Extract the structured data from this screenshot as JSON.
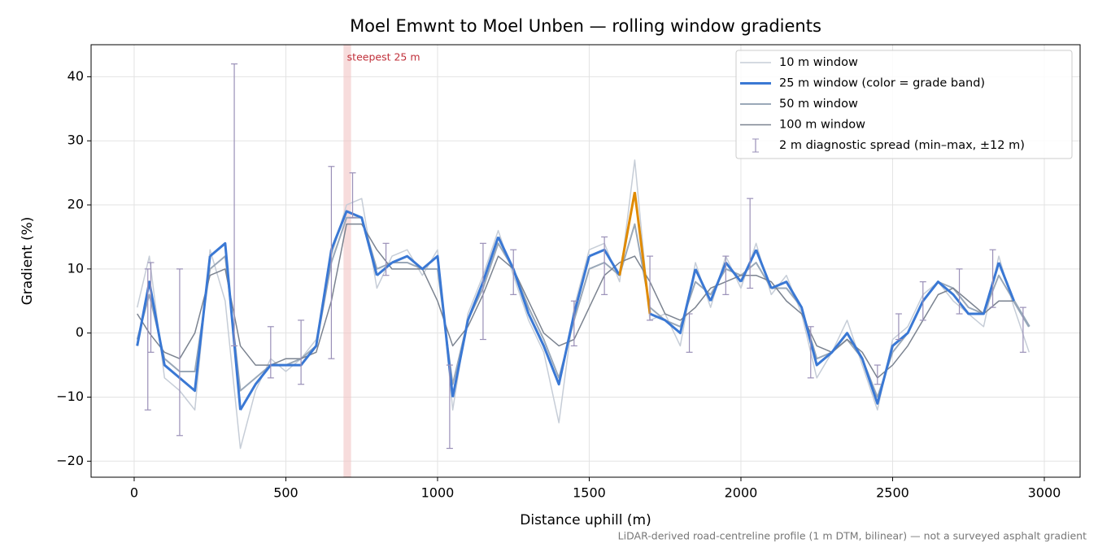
{
  "chart_data": {
    "type": "line",
    "title": "Moel Emwnt to Moel Unben — rolling window gradients",
    "xlabel": "Distance uphill (m)",
    "ylabel": "Gradient (%)",
    "footnote": "LiDAR-derived road-centreline profile (1 m DTM, bilinear) — not a surveyed asphalt gradient",
    "xlim": [
      -142,
      3118
    ],
    "ylim": [
      -22.5,
      45
    ],
    "xticks": [
      0,
      500,
      1000,
      1500,
      2000,
      2500,
      3000
    ],
    "yticks": [
      {
        "value": -20,
        "label": "−20"
      },
      {
        "value": -10,
        "label": "−10"
      },
      0,
      10,
      20,
      30,
      40
    ],
    "grid": true,
    "legend": "upper right",
    "x": [
      10,
      50,
      100,
      150,
      200,
      250,
      300,
      350,
      400,
      450,
      500,
      550,
      600,
      650,
      700,
      750,
      800,
      850,
      900,
      950,
      1000,
      1050,
      1100,
      1150,
      1200,
      1250,
      1300,
      1350,
      1400,
      1450,
      1500,
      1550,
      1600,
      1650,
      1700,
      1750,
      1800,
      1850,
      1900,
      1950,
      2000,
      2050,
      2100,
      2150,
      2200,
      2250,
      2300,
      2350,
      2400,
      2450,
      2500,
      2550,
      2600,
      2650,
      2700,
      2750,
      2800,
      2850,
      2900,
      2950
    ],
    "series": [
      {
        "name": "10 m window",
        "color": "#c6cdd7",
        "width": 1.5,
        "values": [
          4,
          12,
          -7,
          -9,
          -12,
          13,
          5,
          -18,
          -9,
          -4,
          -6,
          -4,
          -1,
          12,
          20,
          21,
          7,
          12,
          13,
          9,
          13,
          -12,
          3,
          9,
          16,
          9,
          2,
          -3,
          -14,
          4,
          13,
          14,
          8,
          27,
          2,
          3,
          -2,
          11,
          4,
          12,
          7,
          14,
          6,
          9,
          3,
          -7,
          -3,
          2,
          -5,
          -12,
          -1,
          1,
          6,
          8,
          5,
          3,
          1,
          12,
          4,
          -3
        ]
      },
      {
        "name": "25 m window (color = grade band)",
        "color": "#3a78d4",
        "width": 3,
        "grade_bands": [
          {
            "max": 10,
            "color": "#96a6b8"
          },
          {
            "max": 20,
            "color": "#3a78d4"
          },
          {
            "max": 45,
            "color": "#e08a00"
          }
        ],
        "values": [
          -2,
          8,
          -5,
          -7,
          -9,
          12,
          14,
          -12,
          -8,
          -5,
          -5,
          -5,
          -2,
          13,
          19,
          18,
          9,
          11,
          12,
          10,
          12,
          -10,
          2,
          8,
          15,
          10,
          3,
          -2,
          -8,
          3,
          12,
          13,
          9,
          22,
          3,
          2,
          0,
          10,
          5,
          11,
          8,
          13,
          7,
          8,
          4,
          -5,
          -3,
          0,
          -4,
          -11,
          -2,
          0,
          5,
          8,
          6,
          3,
          3,
          11,
          5,
          1
        ]
      },
      {
        "name": "50 m window",
        "color": "#9aa8b8",
        "width": 2,
        "values": [
          -1,
          6,
          -4,
          -6,
          -6,
          10,
          12,
          -9,
          -7,
          -5,
          -5,
          -4,
          -2,
          11,
          18,
          18,
          10,
          11,
          11,
          10,
          10,
          -8,
          2,
          7,
          14,
          10,
          4,
          -1,
          -7,
          2,
          10,
          11,
          9,
          17,
          4,
          2,
          1,
          8,
          6,
          10,
          9,
          11,
          7,
          7,
          4,
          -4,
          -3,
          -1,
          -4,
          -10,
          -3,
          0,
          5,
          8,
          7,
          4,
          3,
          9,
          5,
          1
        ]
      },
      {
        "name": "100 m window",
        "color": "#7b8390",
        "width": 1.5,
        "values": [
          3,
          0,
          -3,
          -4,
          0,
          9,
          10,
          -2,
          -5,
          -5,
          -4,
          -4,
          -3,
          5,
          17,
          17,
          13,
          10,
          10,
          10,
          5,
          -2,
          1,
          6,
          12,
          10,
          5,
          0,
          -2,
          -1,
          4,
          9,
          11,
          12,
          8,
          3,
          2,
          4,
          7,
          8,
          9,
          9,
          8,
          5,
          3,
          -2,
          -3,
          -1,
          -3,
          -7,
          -5,
          -2,
          2,
          6,
          7,
          5,
          3,
          5,
          5,
          1
        ]
      }
    ],
    "spread": {
      "name": "2 m diagnostic spread (min–max, ±12 m)",
      "color": "#9a90b8",
      "x": [
        45,
        55,
        150,
        330,
        450,
        550,
        650,
        720,
        830,
        1040,
        1150,
        1250,
        1450,
        1550,
        1700,
        1830,
        1950,
        2030,
        2230,
        2450,
        2520,
        2600,
        2720,
        2830,
        2930
      ],
      "low": [
        -12,
        -3,
        -16,
        -2,
        -7,
        -8,
        -4,
        18,
        9,
        -18,
        -1,
        6,
        -2,
        6,
        2,
        -3,
        6,
        7,
        -7,
        -8,
        -1,
        2,
        3,
        4,
        -3
      ],
      "high": [
        10,
        11,
        10,
        42,
        1,
        2,
        26,
        25,
        14,
        -5,
        14,
        13,
        5,
        15,
        12,
        3,
        12,
        21,
        1,
        -5,
        3,
        8,
        10,
        13,
        4
      ]
    },
    "highlight": {
      "label": "steepest 25 m",
      "x": [
        690,
        715
      ],
      "color": "#f2c4c4",
      "text_color": "#c0303a"
    }
  }
}
